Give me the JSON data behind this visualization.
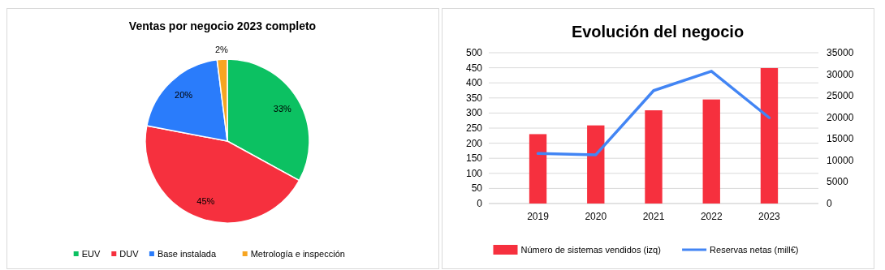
{
  "chart_data": [
    {
      "type": "pie",
      "title": "Ventas por negocio 2023 completo",
      "categories": [
        "EUV",
        "DUV",
        "Base instalada",
        "Metrología e inspección"
      ],
      "values": [
        33,
        45,
        20,
        2
      ],
      "colors": [
        "#0cc162",
        "#f6303e",
        "#2a7cfb",
        "#f7a521"
      ],
      "value_labels": [
        "33%",
        "45%",
        "20%",
        "2%"
      ],
      "legend": "bottom"
    },
    {
      "type": "bar",
      "title": "Evolución del negocio",
      "categories": [
        "2019",
        "2020",
        "2021",
        "2022",
        "2023"
      ],
      "series": [
        {
          "name": "Número de sistemas vendidos (izq)",
          "color": "#f6303e",
          "values": [
            230,
            259,
            309,
            345,
            449
          ]
        },
        {
          "name": "Reservas netas (mill€)",
          "type": "line",
          "axis": "y2",
          "color": "#4285f4",
          "values": [
            11600,
            11300,
            26200,
            30700,
            19900
          ]
        }
      ],
      "ylim": [
        0,
        500
      ],
      "yticks": [
        0,
        50,
        100,
        150,
        200,
        250,
        300,
        350,
        400,
        450,
        500
      ],
      "y2lim": [
        0,
        35000
      ],
      "y2ticks": [
        0,
        5000,
        10000,
        15000,
        20000,
        25000,
        30000,
        35000
      ],
      "grid": "y",
      "legend": "bottom"
    }
  ]
}
